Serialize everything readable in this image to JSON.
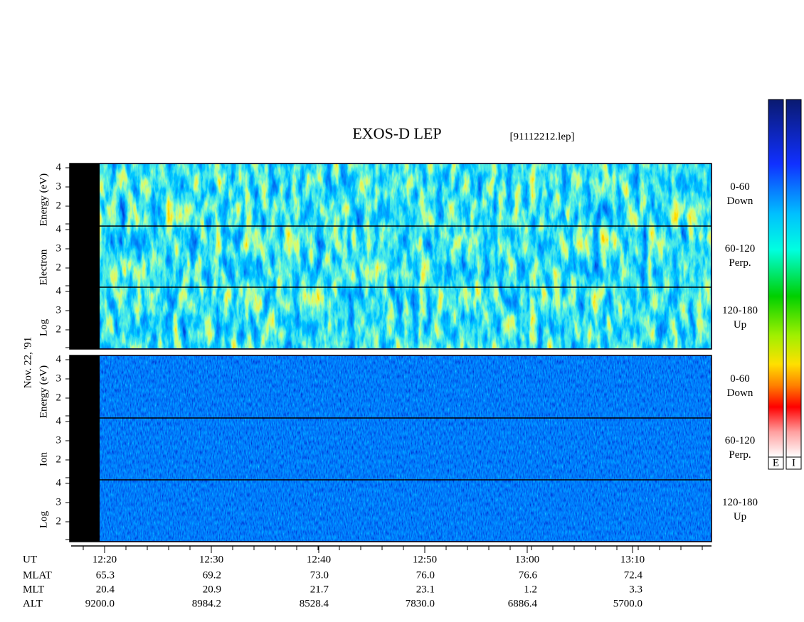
{
  "title": "EXOS-D LEP",
  "file": "[91112212.lep]",
  "date": "Nov. 22, '91",
  "electron_panel": {
    "y_label": [
      "Log",
      "Electron",
      "Energy (eV)"
    ],
    "y_ticks": [
      "4",
      "3",
      "2"
    ],
    "bands": [
      {
        "range": "0-60",
        "direction": "Down"
      },
      {
        "range": "60-120",
        "direction": "Perp."
      },
      {
        "range": "120-180",
        "direction": "Up"
      }
    ]
  },
  "ion_panel": {
    "y_label": [
      "Log",
      "Ion",
      "Energy (eV)"
    ],
    "y_ticks": [
      "4",
      "3",
      "2"
    ],
    "bands": [
      {
        "range": "0-60",
        "direction": "Down"
      },
      {
        "range": "60-120",
        "direction": "Perp."
      },
      {
        "range": "120-180",
        "direction": "Up"
      }
    ]
  },
  "color_bars": [
    "E",
    "I"
  ],
  "x_axis": {
    "row_labels": [
      "UT",
      "MLAT",
      "MLT",
      "ALT"
    ],
    "ticks": [
      {
        "UT": "12:20",
        "MLAT": "65.3",
        "MLT": "20.4",
        "ALT": "9200.0"
      },
      {
        "UT": "12:30",
        "MLAT": "69.2",
        "MLT": "20.9",
        "ALT": "8984.2"
      },
      {
        "UT": "12:40",
        "MLAT": "73.0",
        "MLT": "21.7",
        "ALT": "8528.4"
      },
      {
        "UT": "12:50",
        "MLAT": "76.0",
        "MLT": "23.1",
        "ALT": "7830.0"
      },
      {
        "UT": "13:00",
        "MLAT": "76.6",
        "MLT": "1.2",
        "ALT": "6886.4"
      },
      {
        "UT": "13:10",
        "MLAT": "72.4",
        "MLT": "3.3",
        "ALT": "5700.0"
      }
    ]
  }
}
